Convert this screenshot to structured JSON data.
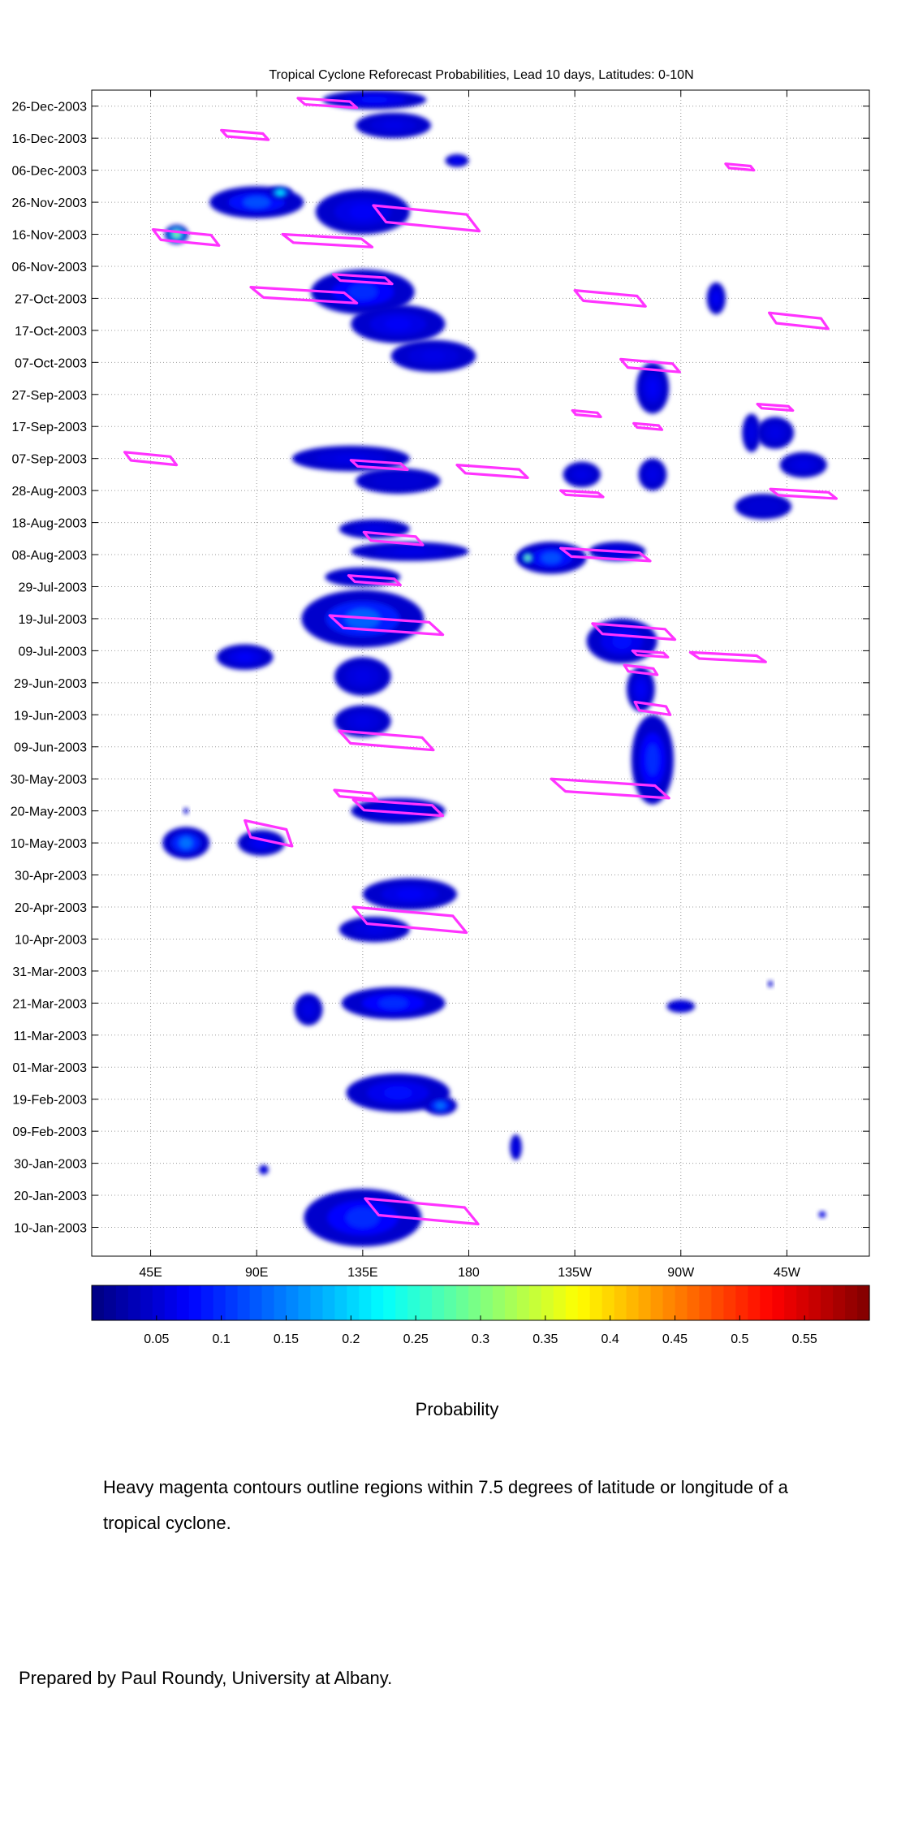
{
  "chart_data": {
    "type": "heatmap",
    "title": "Tropical Cyclone Reforecast Probabilities, Lead 10 days, Latitudes: 0-10N",
    "xlabel": "",
    "ylabel": "",
    "x_ticks": [
      {
        "lon": 45,
        "label": "45E"
      },
      {
        "lon": 90,
        "label": "90E"
      },
      {
        "lon": 135,
        "label": "135E"
      },
      {
        "lon": 180,
        "label": "180"
      },
      {
        "lon": 225,
        "label": "135W"
      },
      {
        "lon": 270,
        "label": "90W"
      },
      {
        "lon": 315,
        "label": "45W"
      }
    ],
    "xlim": [
      20,
      350
    ],
    "y_ticks": [
      {
        "day": 10,
        "label": "10-Jan-2003"
      },
      {
        "day": 20,
        "label": "20-Jan-2003"
      },
      {
        "day": 30,
        "label": "30-Jan-2003"
      },
      {
        "day": 40,
        "label": "09-Feb-2003"
      },
      {
        "day": 50,
        "label": "19-Feb-2003"
      },
      {
        "day": 60,
        "label": "01-Mar-2003"
      },
      {
        "day": 70,
        "label": "11-Mar-2003"
      },
      {
        "day": 80,
        "label": "21-Mar-2003"
      },
      {
        "day": 90,
        "label": "31-Mar-2003"
      },
      {
        "day": 100,
        "label": "10-Apr-2003"
      },
      {
        "day": 110,
        "label": "20-Apr-2003"
      },
      {
        "day": 120,
        "label": "30-Apr-2003"
      },
      {
        "day": 130,
        "label": "10-May-2003"
      },
      {
        "day": 140,
        "label": "20-May-2003"
      },
      {
        "day": 150,
        "label": "30-May-2003"
      },
      {
        "day": 160,
        "label": "09-Jun-2003"
      },
      {
        "day": 170,
        "label": "19-Jun-2003"
      },
      {
        "day": 180,
        "label": "29-Jun-2003"
      },
      {
        "day": 190,
        "label": "09-Jul-2003"
      },
      {
        "day": 200,
        "label": "19-Jul-2003"
      },
      {
        "day": 210,
        "label": "29-Jul-2003"
      },
      {
        "day": 220,
        "label": "08-Aug-2003"
      },
      {
        "day": 230,
        "label": "18-Aug-2003"
      },
      {
        "day": 240,
        "label": "28-Aug-2003"
      },
      {
        "day": 250,
        "label": "07-Sep-2003"
      },
      {
        "day": 260,
        "label": "17-Sep-2003"
      },
      {
        "day": 270,
        "label": "27-Sep-2003"
      },
      {
        "day": 280,
        "label": "07-Oct-2003"
      },
      {
        "day": 290,
        "label": "17-Oct-2003"
      },
      {
        "day": 300,
        "label": "27-Oct-2003"
      },
      {
        "day": 310,
        "label": "06-Nov-2003"
      },
      {
        "day": 320,
        "label": "16-Nov-2003"
      },
      {
        "day": 330,
        "label": "26-Nov-2003"
      },
      {
        "day": 340,
        "label": "06-Dec-2003"
      },
      {
        "day": 350,
        "label": "16-Dec-2003"
      },
      {
        "day": 360,
        "label": "26-Dec-2003"
      }
    ],
    "ylim": [
      1,
      365
    ],
    "grid": true,
    "colorbar": {
      "label": "Probability",
      "min": 0.0,
      "max": 0.6,
      "ticks": [
        0.05,
        0.1,
        0.15,
        0.2,
        0.25,
        0.3,
        0.35,
        0.4,
        0.45,
        0.5,
        0.55
      ],
      "tick_labels": [
        "0.05",
        "0.1",
        "0.15",
        "0.2",
        "0.25",
        "0.3",
        "0.35",
        "0.4",
        "0.45",
        "0.5",
        "0.55"
      ],
      "colormap": "jet"
    },
    "probability_blobs": [
      {
        "lon": 140,
        "day": 362,
        "rx": 22,
        "ry": 3,
        "p": 0.08
      },
      {
        "lon": 148,
        "day": 354,
        "rx": 16,
        "ry": 4,
        "p": 0.06
      },
      {
        "lon": 175,
        "day": 343,
        "rx": 5,
        "ry": 2,
        "p": 0.07
      },
      {
        "lon": 90,
        "day": 330,
        "rx": 20,
        "ry": 5,
        "p": 0.12
      },
      {
        "lon": 100,
        "day": 333,
        "rx": 5,
        "ry": 2,
        "p": 0.22
      },
      {
        "lon": 135,
        "day": 327,
        "rx": 20,
        "ry": 7,
        "p": 0.07
      },
      {
        "lon": 56,
        "day": 320,
        "rx": 5,
        "ry": 3,
        "p": 0.3
      },
      {
        "lon": 135,
        "day": 302,
        "rx": 22,
        "ry": 7,
        "p": 0.1
      },
      {
        "lon": 150,
        "day": 292,
        "rx": 20,
        "ry": 6,
        "p": 0.07
      },
      {
        "lon": 165,
        "day": 282,
        "rx": 18,
        "ry": 5,
        "p": 0.06
      },
      {
        "lon": 130,
        "day": 250,
        "rx": 25,
        "ry": 4,
        "p": 0.06
      },
      {
        "lon": 150,
        "day": 243,
        "rx": 18,
        "ry": 4,
        "p": 0.05
      },
      {
        "lon": 140,
        "day": 228,
        "rx": 15,
        "ry": 3,
        "p": 0.06
      },
      {
        "lon": 155,
        "day": 221,
        "rx": 25,
        "ry": 3,
        "p": 0.06
      },
      {
        "lon": 135,
        "day": 213,
        "rx": 16,
        "ry": 3,
        "p": 0.06
      },
      {
        "lon": 135,
        "day": 200,
        "rx": 26,
        "ry": 9,
        "p": 0.13
      },
      {
        "lon": 85,
        "day": 188,
        "rx": 12,
        "ry": 4,
        "p": 0.07
      },
      {
        "lon": 135,
        "day": 182,
        "rx": 12,
        "ry": 6,
        "p": 0.06
      },
      {
        "lon": 135,
        "day": 168,
        "rx": 12,
        "ry": 5,
        "p": 0.06
      },
      {
        "lon": 150,
        "day": 140,
        "rx": 20,
        "ry": 4,
        "p": 0.06
      },
      {
        "lon": 60,
        "day": 130,
        "rx": 10,
        "ry": 5,
        "p": 0.14
      },
      {
        "lon": 92,
        "day": 130,
        "rx": 10,
        "ry": 4,
        "p": 0.07
      },
      {
        "lon": 155,
        "day": 114,
        "rx": 20,
        "ry": 5,
        "p": 0.07
      },
      {
        "lon": 140,
        "day": 103,
        "rx": 15,
        "ry": 4,
        "p": 0.06
      },
      {
        "lon": 148,
        "day": 80,
        "rx": 22,
        "ry": 5,
        "p": 0.1
      },
      {
        "lon": 112,
        "day": 78,
        "rx": 6,
        "ry": 5,
        "p": 0.06
      },
      {
        "lon": 150,
        "day": 52,
        "rx": 22,
        "ry": 6,
        "p": 0.08
      },
      {
        "lon": 168,
        "day": 48,
        "rx": 7,
        "ry": 3,
        "p": 0.14
      },
      {
        "lon": 135,
        "day": 13,
        "rx": 25,
        "ry": 9,
        "p": 0.1
      },
      {
        "lon": 60,
        "day": 140,
        "rx": 1,
        "ry": 1,
        "p": 0.05
      },
      {
        "lon": 215,
        "day": 219,
        "rx": 15,
        "ry": 5,
        "p": 0.12
      },
      {
        "lon": 205,
        "day": 219,
        "rx": 3,
        "ry": 2,
        "p": 0.3
      },
      {
        "lon": 243,
        "day": 221,
        "rx": 12,
        "ry": 3,
        "p": 0.06
      },
      {
        "lon": 245,
        "day": 193,
        "rx": 15,
        "ry": 7,
        "p": 0.08
      },
      {
        "lon": 253,
        "day": 178,
        "rx": 6,
        "ry": 7,
        "p": 0.07
      },
      {
        "lon": 258,
        "day": 156,
        "rx": 9,
        "ry": 14,
        "p": 0.1
      },
      {
        "lon": 258,
        "day": 272,
        "rx": 7,
        "ry": 8,
        "p": 0.07
      },
      {
        "lon": 258,
        "day": 245,
        "rx": 6,
        "ry": 5,
        "p": 0.06
      },
      {
        "lon": 228,
        "day": 245,
        "rx": 8,
        "ry": 4,
        "p": 0.06
      },
      {
        "lon": 285,
        "day": 300,
        "rx": 4,
        "ry": 5,
        "p": 0.07
      },
      {
        "lon": 310,
        "day": 258,
        "rx": 8,
        "ry": 5,
        "p": 0.06
      },
      {
        "lon": 322,
        "day": 248,
        "rx": 10,
        "ry": 4,
        "p": 0.06
      },
      {
        "lon": 300,
        "day": 258,
        "rx": 4,
        "ry": 6,
        "p": 0.06
      },
      {
        "lon": 305,
        "day": 235,
        "rx": 12,
        "ry": 4,
        "p": 0.05
      },
      {
        "lon": 270,
        "day": 79,
        "rx": 6,
        "ry": 2,
        "p": 0.06
      },
      {
        "lon": 330,
        "day": 14,
        "rx": 1.5,
        "ry": 1,
        "p": 0.08
      },
      {
        "lon": 200,
        "day": 35,
        "rx": 2.5,
        "ry": 4,
        "p": 0.06
      },
      {
        "lon": 93,
        "day": 28,
        "rx": 2,
        "ry": 1.5,
        "p": 0.06
      },
      {
        "lon": 308,
        "day": 86,
        "rx": 1,
        "ry": 1,
        "p": 0.05
      }
    ],
    "tc_contours": [
      {
        "lon": 120,
        "day": 361,
        "w": 25,
        "h": 3
      },
      {
        "lon": 85,
        "day": 351,
        "w": 20,
        "h": 3
      },
      {
        "lon": 295,
        "day": 341,
        "w": 12,
        "h": 2
      },
      {
        "lon": 162,
        "day": 325,
        "w": 45,
        "h": 8
      },
      {
        "lon": 60,
        "day": 319,
        "w": 28,
        "h": 5
      },
      {
        "lon": 120,
        "day": 318,
        "w": 38,
        "h": 4
      },
      {
        "lon": 110,
        "day": 301,
        "w": 45,
        "h": 5
      },
      {
        "lon": 135,
        "day": 306,
        "w": 25,
        "h": 3
      },
      {
        "lon": 240,
        "day": 300,
        "w": 30,
        "h": 5
      },
      {
        "lon": 320,
        "day": 293,
        "w": 25,
        "h": 5
      },
      {
        "lon": 257,
        "day": 279,
        "w": 25,
        "h": 4
      },
      {
        "lon": 230,
        "day": 264,
        "w": 12,
        "h": 2
      },
      {
        "lon": 256,
        "day": 260,
        "w": 12,
        "h": 2
      },
      {
        "lon": 310,
        "day": 266,
        "w": 15,
        "h": 2
      },
      {
        "lon": 45,
        "day": 250,
        "w": 22,
        "h": 4
      },
      {
        "lon": 142,
        "day": 248,
        "w": 24,
        "h": 3
      },
      {
        "lon": 190,
        "day": 246,
        "w": 30,
        "h": 4
      },
      {
        "lon": 228,
        "day": 239,
        "w": 18,
        "h": 2
      },
      {
        "lon": 322,
        "day": 239,
        "w": 28,
        "h": 3
      },
      {
        "lon": 148,
        "day": 225,
        "w": 25,
        "h": 4
      },
      {
        "lon": 238,
        "day": 220,
        "w": 38,
        "h": 4
      },
      {
        "lon": 140,
        "day": 212,
        "w": 22,
        "h": 3
      },
      {
        "lon": 145,
        "day": 198,
        "w": 48,
        "h": 6
      },
      {
        "lon": 250,
        "day": 196,
        "w": 35,
        "h": 5
      },
      {
        "lon": 257,
        "day": 189,
        "w": 15,
        "h": 2
      },
      {
        "lon": 290,
        "day": 188,
        "w": 32,
        "h": 3
      },
      {
        "lon": 258,
        "day": 172,
        "w": 15,
        "h": 4
      },
      {
        "lon": 253,
        "day": 184,
        "w": 14,
        "h": 3
      },
      {
        "lon": 145,
        "day": 162,
        "w": 40,
        "h": 6
      },
      {
        "lon": 240,
        "day": 147,
        "w": 50,
        "h": 6
      },
      {
        "lon": 132,
        "day": 145,
        "w": 18,
        "h": 3
      },
      {
        "lon": 150,
        "day": 141,
        "w": 38,
        "h": 5
      },
      {
        "lon": 95,
        "day": 133,
        "w": 20,
        "h": 8
      },
      {
        "lon": 155,
        "day": 106,
        "w": 48,
        "h": 8
      },
      {
        "lon": 160,
        "day": 15,
        "w": 48,
        "h": 8
      }
    ],
    "tc_contour_color": "#ff33ff"
  },
  "colorbar_label": "Probability",
  "note": "Heavy magenta contours outline regions within 7.5 degrees of latitude or longitude of a tropical cyclone.",
  "credit": "Prepared by Paul Roundy, University at Albany."
}
